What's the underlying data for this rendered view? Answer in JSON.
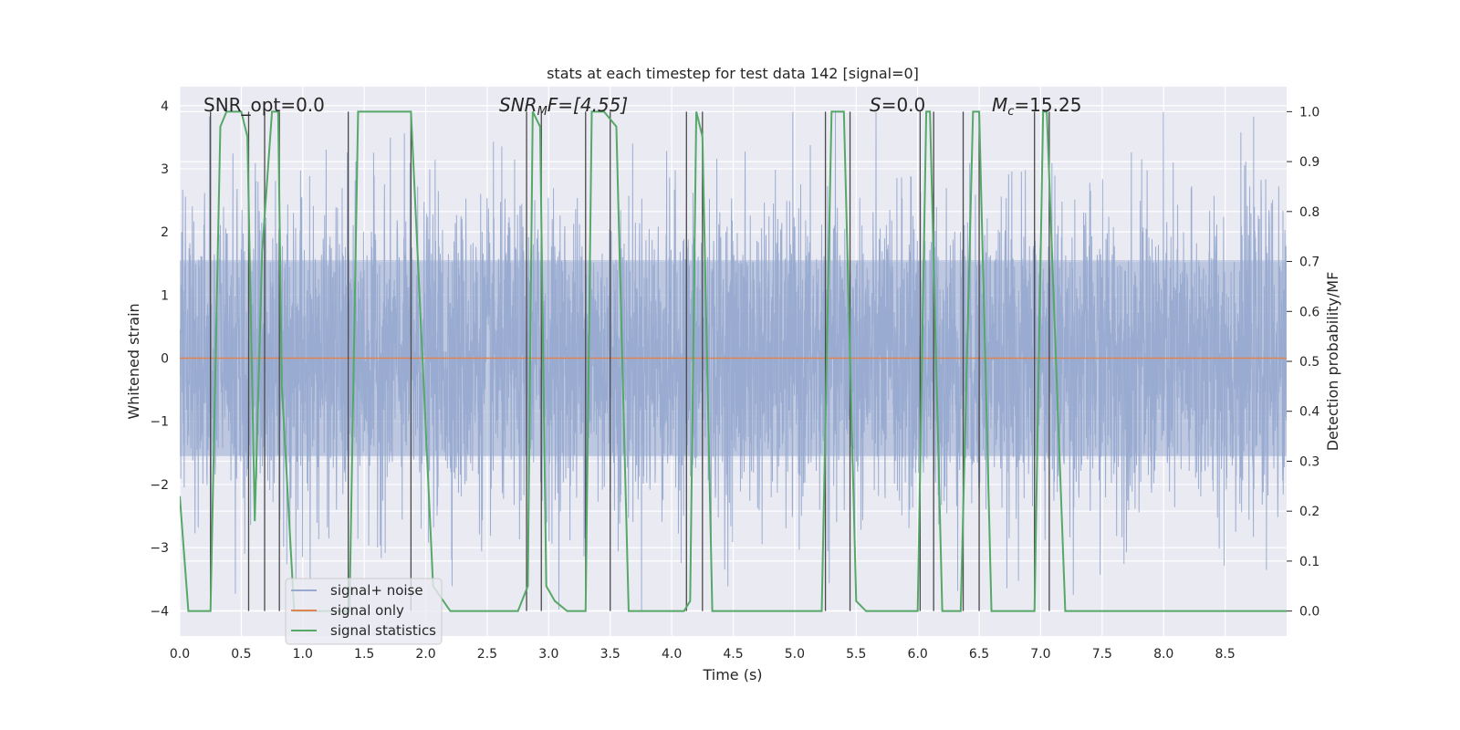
{
  "colors": {
    "background": "#eaeaf2",
    "grid": "#ffffff",
    "signal_noise": "#98aad0",
    "signal_only": "#dd8452",
    "signal_statistics": "#55a868",
    "vlines": "#4a4a4a",
    "text": "#262626"
  },
  "chart_data": {
    "type": "line",
    "title": "stats at each timestep for test data 142 [signal=0]",
    "xlabel": "Time (s)",
    "ylabel_left": "Whitened strain",
    "ylabel_right": "Detection probability/MF",
    "xlim": [
      0.0,
      9.0
    ],
    "ylim_left": [
      -4.4,
      4.3
    ],
    "ylim_right": [
      -0.05,
      1.05
    ],
    "x_ticks": [
      "0.0",
      "0.5",
      "1.0",
      "1.5",
      "2.0",
      "2.5",
      "3.0",
      "3.5",
      "4.0",
      "4.5",
      "5.0",
      "5.5",
      "6.0",
      "6.5",
      "7.0",
      "7.5",
      "8.0",
      "8.5"
    ],
    "x_tick_values": [
      0.0,
      0.5,
      1.0,
      1.5,
      2.0,
      2.5,
      3.0,
      3.5,
      4.0,
      4.5,
      5.0,
      5.5,
      6.0,
      6.5,
      7.0,
      7.5,
      8.0,
      8.5
    ],
    "y_ticks_left": [
      "−4",
      "−3",
      "−2",
      "−1",
      "0",
      "1",
      "2",
      "3",
      "4"
    ],
    "y_tick_values_left": [
      -4,
      -3,
      -2,
      -1,
      0,
      1,
      2,
      3,
      4
    ],
    "y_ticks_right": [
      "0.0",
      "0.1",
      "0.2",
      "0.3",
      "0.4",
      "0.5",
      "0.6",
      "0.7",
      "0.8",
      "0.9",
      "1.0"
    ],
    "y_tick_values_right": [
      0.0,
      0.1,
      0.2,
      0.3,
      0.4,
      0.5,
      0.6,
      0.7,
      0.8,
      0.9,
      1.0
    ],
    "annotations": {
      "snr_opt": "SNR_opt=0.0",
      "snr_mf_main": "SNR",
      "snr_mf_sub": "M",
      "snr_mf_rest": "F=[4.55]",
      "s_italic": "S",
      "s_rest": "=0.0",
      "mc_main": "M",
      "mc_sub": "c",
      "mc_rest": "=15.25"
    },
    "legend": [
      "signal+ noise",
      "signal only",
      "signal statistics"
    ],
    "signal_noise": {
      "name": "signal+ noise",
      "noise_std": 1.2,
      "core_amplitude": 1.55,
      "peak_max": 3.9,
      "trough_min": -4.0
    },
    "signal_only": {
      "name": "signal only",
      "x": [
        0.0,
        9.0
      ],
      "y": [
        0.0,
        0.0
      ]
    },
    "signal_statistics": {
      "name": "signal statistics",
      "x": [
        0.0,
        0.07,
        0.25,
        0.33,
        0.38,
        0.5,
        0.55,
        0.61,
        0.67,
        0.75,
        0.8,
        0.83,
        0.93,
        1.38,
        1.45,
        1.75,
        1.88,
        2.06,
        2.2,
        2.75,
        2.83,
        2.87,
        2.93,
        2.98,
        3.05,
        3.15,
        3.3,
        3.35,
        3.45,
        3.55,
        3.65,
        4.1,
        4.15,
        4.2,
        4.25,
        4.33,
        5.22,
        5.3,
        5.4,
        5.5,
        5.58,
        6.0,
        6.07,
        6.1,
        6.2,
        6.35,
        6.45,
        6.5,
        6.6,
        6.8,
        6.95,
        7.02,
        7.05,
        7.2,
        7.8,
        9.0
      ],
      "y": [
        0.23,
        0.0,
        0.0,
        0.97,
        1.0,
        1.0,
        0.95,
        0.18,
        0.72,
        1.0,
        1.0,
        0.45,
        0.0,
        0.0,
        1.0,
        1.0,
        1.0,
        0.05,
        0.0,
        0.0,
        0.05,
        1.0,
        0.97,
        0.05,
        0.02,
        0.0,
        0.0,
        1.0,
        1.0,
        0.97,
        0.0,
        0.0,
        0.02,
        1.0,
        0.95,
        0.0,
        0.0,
        1.0,
        1.0,
        0.02,
        0.0,
        0.0,
        1.0,
        1.0,
        0.0,
        0.0,
        1.0,
        1.0,
        0.0,
        0.0,
        0.0,
        1.0,
        1.0,
        0.0,
        0.0,
        0.0
      ]
    },
    "vlines_x": [
      0.25,
      0.56,
      0.69,
      0.81,
      1.37,
      1.88,
      2.82,
      2.94,
      3.3,
      3.5,
      4.12,
      4.25,
      5.25,
      5.45,
      6.02,
      6.13,
      6.37,
      6.5,
      6.95,
      7.07
    ]
  }
}
